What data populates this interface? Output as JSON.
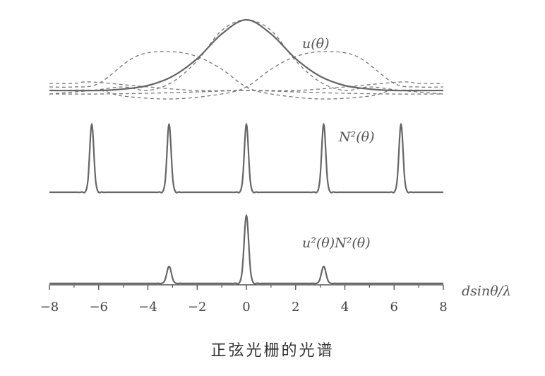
{
  "chart_data": {
    "type": "line",
    "xlabel": "dsinθ/λ",
    "xlim": [
      -8,
      8
    ],
    "xticks": [
      -8,
      -6,
      -4,
      -2,
      0,
      2,
      4,
      6,
      8
    ],
    "xtick_labels": [
      "−8",
      "−6",
      "−4",
      "−2",
      "0",
      "2",
      "4",
      "6",
      "8"
    ],
    "grid": false,
    "panels": [
      {
        "name": "u(θ)",
        "label": "u(θ)",
        "series": [
          {
            "kind": "envelope",
            "style": "solid",
            "points": [
              [
                -8,
                0.0
              ],
              [
                -6,
                0.0
              ],
              [
                -5,
                0.02
              ],
              [
                -4,
                0.07
              ],
              [
                -3,
                0.2
              ],
              [
                -2,
                0.45
              ],
              [
                -1,
                0.8
              ],
              [
                0,
                1.0
              ],
              [
                1,
                0.8
              ],
              [
                2,
                0.45
              ],
              [
                3,
                0.2
              ],
              [
                4,
                0.07
              ],
              [
                5,
                0.02
              ],
              [
                6,
                0.0
              ],
              [
                8,
                0.0
              ]
            ]
          },
          {
            "kind": "component",
            "center": 0,
            "style": "dashed",
            "points": [
              [
                -8,
                -0.05
              ],
              [
                -6.28,
                0.0
              ],
              [
                -5,
                0.05
              ],
              [
                -4,
                0.0
              ],
              [
                -3,
                0.12
              ],
              [
                -2,
                0.42
              ],
              [
                -1,
                0.85
              ],
              [
                0,
                1.0
              ],
              [
                1,
                0.85
              ],
              [
                2,
                0.42
              ],
              [
                3,
                0.12
              ],
              [
                4,
                0.0
              ],
              [
                5,
                0.05
              ],
              [
                6.28,
                0.0
              ],
              [
                8,
                -0.05
              ]
            ]
          },
          {
            "kind": "component",
            "center": 3.14,
            "style": "dashed",
            "points": [
              [
                -8,
                0.0
              ],
              [
                -6,
                0.0
              ],
              [
                -5,
                -0.08
              ],
              [
                -3,
                -0.12
              ],
              [
                -1,
                -0.05
              ],
              [
                0,
                0.05
              ],
              [
                1,
                0.3
              ],
              [
                2,
                0.48
              ],
              [
                3.14,
                0.55
              ],
              [
                4.5,
                0.48
              ],
              [
                6,
                0.1
              ],
              [
                7,
                0.05
              ],
              [
                8,
                0.05
              ]
            ]
          },
          {
            "kind": "component",
            "center": -3.14,
            "style": "dashed",
            "points": [
              [
                -8,
                0.05
              ],
              [
                -7,
                0.05
              ],
              [
                -6,
                0.1
              ],
              [
                -4.5,
                0.48
              ],
              [
                -3.14,
                0.55
              ],
              [
                -2,
                0.48
              ],
              [
                -1,
                0.3
              ],
              [
                0,
                0.05
              ],
              [
                1,
                -0.05
              ],
              [
                3,
                -0.12
              ],
              [
                5,
                -0.08
              ],
              [
                6,
                0.0
              ],
              [
                8,
                0.0
              ]
            ]
          },
          {
            "kind": "component",
            "center": 6.28,
            "style": "dashed",
            "points": [
              [
                -8,
                -0.05
              ],
              [
                -6,
                -0.05
              ],
              [
                -4,
                -0.04
              ],
              [
                -2,
                -0.02
              ],
              [
                0,
                0.0
              ],
              [
                2,
                0.0
              ],
              [
                4,
                0.05
              ],
              [
                6.28,
                0.12
              ],
              [
                7,
                0.1
              ],
              [
                8,
                0.1
              ]
            ]
          },
          {
            "kind": "component",
            "center": -6.28,
            "style": "dashed",
            "points": [
              [
                -8,
                0.1
              ],
              [
                -7,
                0.1
              ],
              [
                -6.28,
                0.12
              ],
              [
                -4,
                0.05
              ],
              [
                -2,
                0.0
              ],
              [
                0,
                0.0
              ],
              [
                2,
                -0.02
              ],
              [
                4,
                -0.04
              ],
              [
                6,
                -0.05
              ],
              [
                8,
                -0.05
              ]
            ]
          }
        ]
      },
      {
        "name": "N²(θ)",
        "label": "N²(θ)",
        "peaks": [
          {
            "x": -6.28,
            "value": 1.0
          },
          {
            "x": -3.14,
            "value": 1.0
          },
          {
            "x": 0,
            "value": 1.0
          },
          {
            "x": 3.14,
            "value": 1.0
          },
          {
            "x": 6.28,
            "value": 1.0
          }
        ]
      },
      {
        "name": "u²(θ)N²(θ)",
        "label": "u²(θ)N²(θ)",
        "peaks": [
          {
            "x": -3.14,
            "value": 0.25
          },
          {
            "x": 0,
            "value": 1.0
          },
          {
            "x": 3.14,
            "value": 0.25
          }
        ]
      }
    ]
  },
  "caption": "正弦光栅的光谱"
}
